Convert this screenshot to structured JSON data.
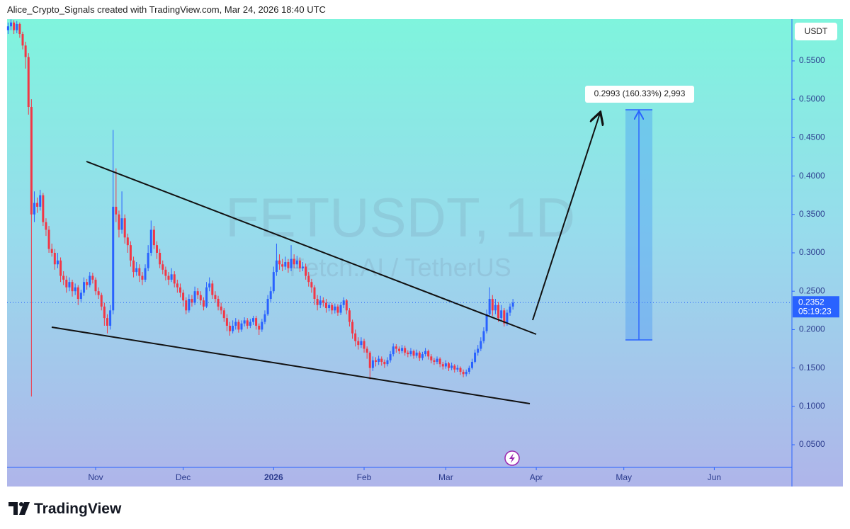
{
  "header": {
    "text": "Alice_Crypto_Signals created with TradingView.com, Mar 24, 2026 18:40 UTC"
  },
  "chart_data": {
    "type": "candlestick",
    "watermark": "FETUSDT, 1D",
    "watermark_subtitle": "Fetch.AI / TetherUS",
    "y_axis_unit": "USDT",
    "up_color": "#2962ff",
    "down_color": "#f23645",
    "xlim": [
      0.66,
      269.6
    ],
    "ylim": [
      0.0205,
      0.6044
    ],
    "xticks": [
      {
        "value": 31,
        "label": "Nov"
      },
      {
        "value": 61,
        "label": "Dec"
      },
      {
        "value": 92,
        "label": "2026"
      },
      {
        "value": 123,
        "label": "Feb"
      },
      {
        "value": 151,
        "label": "Mar"
      },
      {
        "value": 182,
        "label": "Apr"
      },
      {
        "value": 212,
        "label": "May"
      },
      {
        "value": 243,
        "label": "Jun"
      }
    ],
    "yticks": [
      {
        "value": 0.05,
        "label": "0.0500"
      },
      {
        "value": 0.1,
        "label": "0.1000"
      },
      {
        "value": 0.15,
        "label": "0.1500"
      },
      {
        "value": 0.2,
        "label": "0.2000"
      },
      {
        "value": 0.25,
        "label": "0.2500"
      },
      {
        "value": 0.3,
        "label": "0.3000"
      },
      {
        "value": 0.35,
        "label": "0.3500"
      },
      {
        "value": 0.4,
        "label": "0.4000"
      },
      {
        "value": 0.45,
        "label": "0.4500"
      },
      {
        "value": 0.5,
        "label": "0.5000"
      },
      {
        "value": 0.55,
        "label": "0.5500"
      }
    ],
    "last_price": 0.2352,
    "countdown": "05:19:23",
    "measurement_label": "0.2993 (160.33%) 2,993",
    "x": [
      1,
      2,
      3,
      4,
      5,
      6,
      7,
      8,
      9,
      10,
      11,
      12,
      13,
      14,
      15,
      16,
      17,
      18,
      19,
      20,
      21,
      22,
      23,
      24,
      25,
      26,
      27,
      28,
      29,
      30,
      31,
      32,
      33,
      34,
      35,
      36,
      37,
      38,
      39,
      40,
      41,
      42,
      43,
      44,
      45,
      46,
      47,
      48,
      49,
      50,
      51,
      52,
      53,
      54,
      55,
      56,
      57,
      58,
      59,
      60,
      61,
      62,
      63,
      64,
      65,
      66,
      67,
      68,
      69,
      70,
      71,
      72,
      73,
      74,
      75,
      76,
      77,
      78,
      79,
      80,
      81,
      82,
      83,
      84,
      85,
      86,
      87,
      88,
      89,
      90,
      91,
      92,
      93,
      94,
      95,
      96,
      97,
      98,
      99,
      100,
      101,
      102,
      103,
      104,
      105,
      106,
      107,
      108,
      109,
      110,
      111,
      112,
      113,
      114,
      115,
      116,
      117,
      118,
      119,
      120,
      121,
      122,
      123,
      124,
      125,
      126,
      127,
      128,
      129,
      130,
      131,
      132,
      133,
      134,
      135,
      136,
      137,
      138,
      139,
      140,
      141,
      142,
      143,
      144,
      145,
      146,
      147,
      148,
      149,
      150,
      151,
      152,
      153,
      154,
      155,
      156,
      157,
      158,
      159,
      160,
      161,
      162,
      163,
      164,
      165,
      166,
      167,
      168,
      169,
      170,
      171,
      172,
      173,
      174
    ],
    "open": [
      0.59,
      0.595,
      0.6,
      0.59,
      0.598,
      0.585,
      0.57,
      0.555,
      0.49,
      0.35,
      0.365,
      0.36,
      0.375,
      0.34,
      0.33,
      0.305,
      0.3,
      0.285,
      0.29,
      0.27,
      0.265,
      0.255,
      0.262,
      0.25,
      0.255,
      0.24,
      0.248,
      0.262,
      0.258,
      0.27,
      0.265,
      0.25,
      0.245,
      0.23,
      0.215,
      0.205,
      0.225,
      0.36,
      0.35,
      0.33,
      0.345,
      0.32,
      0.31,
      0.29,
      0.275,
      0.28,
      0.27,
      0.265,
      0.28,
      0.3,
      0.33,
      0.31,
      0.3,
      0.285,
      0.278,
      0.27,
      0.265,
      0.272,
      0.26,
      0.255,
      0.248,
      0.238,
      0.225,
      0.24,
      0.235,
      0.25,
      0.245,
      0.238,
      0.23,
      0.255,
      0.26,
      0.245,
      0.24,
      0.23,
      0.225,
      0.215,
      0.205,
      0.198,
      0.205,
      0.21,
      0.2,
      0.208,
      0.212,
      0.205,
      0.21,
      0.215,
      0.205,
      0.2,
      0.21,
      0.22,
      0.24,
      0.25,
      0.275,
      0.29,
      0.285,
      0.282,
      0.288,
      0.28,
      0.292,
      0.285,
      0.29,
      0.28,
      0.282,
      0.27,
      0.262,
      0.255,
      0.24,
      0.232,
      0.238,
      0.235,
      0.228,
      0.232,
      0.225,
      0.23,
      0.222,
      0.232,
      0.238,
      0.225,
      0.21,
      0.195,
      0.185,
      0.18,
      0.185,
      0.175,
      0.17,
      0.15,
      0.16,
      0.158,
      0.162,
      0.158,
      0.155,
      0.16,
      0.168,
      0.178,
      0.175,
      0.172,
      0.176,
      0.17,
      0.168,
      0.172,
      0.166,
      0.17,
      0.163,
      0.168,
      0.172,
      0.165,
      0.16,
      0.158,
      0.162,
      0.155,
      0.152,
      0.156,
      0.15,
      0.153,
      0.148,
      0.15,
      0.145,
      0.142,
      0.145,
      0.15,
      0.158,
      0.17,
      0.175,
      0.185,
      0.198,
      0.22,
      0.24,
      0.225,
      0.232,
      0.215,
      0.225,
      0.208,
      0.222,
      0.23
    ],
    "high": [
      0.6,
      0.604,
      0.603,
      0.602,
      0.6,
      0.588,
      0.575,
      0.56,
      0.5,
      0.38,
      0.372,
      0.382,
      0.378,
      0.345,
      0.335,
      0.312,
      0.305,
      0.3,
      0.294,
      0.276,
      0.27,
      0.268,
      0.265,
      0.26,
      0.258,
      0.252,
      0.268,
      0.266,
      0.275,
      0.274,
      0.268,
      0.255,
      0.248,
      0.235,
      0.22,
      0.232,
      0.46,
      0.41,
      0.355,
      0.38,
      0.35,
      0.325,
      0.315,
      0.295,
      0.288,
      0.285,
      0.275,
      0.285,
      0.31,
      0.342,
      0.335,
      0.315,
      0.305,
      0.29,
      0.282,
      0.275,
      0.28,
      0.276,
      0.265,
      0.26,
      0.252,
      0.242,
      0.246,
      0.245,
      0.256,
      0.254,
      0.25,
      0.242,
      0.262,
      0.268,
      0.264,
      0.25,
      0.244,
      0.235,
      0.228,
      0.22,
      0.21,
      0.212,
      0.215,
      0.213,
      0.212,
      0.216,
      0.215,
      0.214,
      0.218,
      0.218,
      0.208,
      0.214,
      0.225,
      0.245,
      0.256,
      0.282,
      0.312,
      0.298,
      0.292,
      0.295,
      0.292,
      0.31,
      0.298,
      0.296,
      0.294,
      0.288,
      0.286,
      0.275,
      0.266,
      0.258,
      0.245,
      0.244,
      0.242,
      0.24,
      0.236,
      0.235,
      0.234,
      0.233,
      0.236,
      0.242,
      0.24,
      0.228,
      0.213,
      0.2,
      0.19,
      0.19,
      0.188,
      0.178,
      0.172,
      0.165,
      0.164,
      0.166,
      0.165,
      0.161,
      0.164,
      0.172,
      0.182,
      0.181,
      0.178,
      0.18,
      0.179,
      0.173,
      0.176,
      0.174,
      0.174,
      0.172,
      0.171,
      0.176,
      0.174,
      0.168,
      0.163,
      0.165,
      0.164,
      0.158,
      0.16,
      0.158,
      0.157,
      0.155,
      0.154,
      0.152,
      0.148,
      0.148,
      0.153,
      0.162,
      0.174,
      0.18,
      0.19,
      0.203,
      0.226,
      0.255,
      0.245,
      0.24,
      0.236,
      0.232,
      0.228,
      0.226,
      0.234,
      0.24
    ],
    "low": [
      0.585,
      0.59,
      0.585,
      0.586,
      0.58,
      0.565,
      0.54,
      0.48,
      0.113,
      0.34,
      0.352,
      0.355,
      0.335,
      0.322,
      0.3,
      0.295,
      0.278,
      0.28,
      0.262,
      0.258,
      0.248,
      0.25,
      0.243,
      0.245,
      0.232,
      0.236,
      0.244,
      0.252,
      0.255,
      0.26,
      0.245,
      0.24,
      0.225,
      0.205,
      0.195,
      0.2,
      0.22,
      0.34,
      0.32,
      0.325,
      0.312,
      0.3,
      0.282,
      0.268,
      0.27,
      0.262,
      0.258,
      0.262,
      0.276,
      0.296,
      0.305,
      0.292,
      0.28,
      0.272,
      0.264,
      0.258,
      0.262,
      0.255,
      0.248,
      0.242,
      0.23,
      0.22,
      0.222,
      0.23,
      0.232,
      0.24,
      0.232,
      0.225,
      0.228,
      0.25,
      0.24,
      0.235,
      0.225,
      0.22,
      0.21,
      0.198,
      0.192,
      0.195,
      0.2,
      0.196,
      0.197,
      0.204,
      0.201,
      0.202,
      0.206,
      0.2,
      0.193,
      0.197,
      0.207,
      0.218,
      0.236,
      0.247,
      0.27,
      0.278,
      0.276,
      0.278,
      0.274,
      0.276,
      0.28,
      0.28,
      0.275,
      0.276,
      0.265,
      0.256,
      0.248,
      0.232,
      0.225,
      0.228,
      0.23,
      0.222,
      0.224,
      0.22,
      0.221,
      0.218,
      0.219,
      0.228,
      0.22,
      0.204,
      0.188,
      0.178,
      0.174,
      0.176,
      0.17,
      0.162,
      0.135,
      0.146,
      0.152,
      0.154,
      0.153,
      0.15,
      0.152,
      0.157,
      0.165,
      0.17,
      0.168,
      0.169,
      0.166,
      0.164,
      0.165,
      0.162,
      0.163,
      0.159,
      0.16,
      0.165,
      0.161,
      0.156,
      0.154,
      0.155,
      0.151,
      0.148,
      0.149,
      0.146,
      0.147,
      0.144,
      0.145,
      0.141,
      0.138,
      0.139,
      0.142,
      0.148,
      0.156,
      0.166,
      0.172,
      0.182,
      0.195,
      0.218,
      0.218,
      0.22,
      0.21,
      0.212,
      0.204,
      0.205,
      0.218,
      0.226
    ],
    "close": [
      0.595,
      0.6,
      0.59,
      0.598,
      0.585,
      0.57,
      0.555,
      0.49,
      0.35,
      0.365,
      0.36,
      0.375,
      0.34,
      0.33,
      0.305,
      0.3,
      0.285,
      0.29,
      0.27,
      0.265,
      0.255,
      0.262,
      0.25,
      0.255,
      0.24,
      0.248,
      0.262,
      0.258,
      0.27,
      0.265,
      0.25,
      0.245,
      0.23,
      0.215,
      0.205,
      0.225,
      0.36,
      0.35,
      0.33,
      0.345,
      0.32,
      0.31,
      0.29,
      0.275,
      0.28,
      0.27,
      0.265,
      0.28,
      0.3,
      0.33,
      0.31,
      0.3,
      0.285,
      0.278,
      0.27,
      0.265,
      0.272,
      0.26,
      0.255,
      0.248,
      0.238,
      0.225,
      0.24,
      0.235,
      0.25,
      0.245,
      0.238,
      0.23,
      0.255,
      0.26,
      0.245,
      0.24,
      0.23,
      0.225,
      0.215,
      0.205,
      0.198,
      0.205,
      0.21,
      0.2,
      0.208,
      0.212,
      0.205,
      0.21,
      0.215,
      0.205,
      0.2,
      0.21,
      0.22,
      0.24,
      0.25,
      0.275,
      0.29,
      0.285,
      0.282,
      0.288,
      0.28,
      0.292,
      0.285,
      0.29,
      0.28,
      0.282,
      0.27,
      0.262,
      0.255,
      0.24,
      0.232,
      0.238,
      0.235,
      0.228,
      0.232,
      0.225,
      0.23,
      0.222,
      0.232,
      0.238,
      0.225,
      0.21,
      0.195,
      0.185,
      0.18,
      0.185,
      0.175,
      0.17,
      0.15,
      0.16,
      0.158,
      0.162,
      0.158,
      0.155,
      0.16,
      0.168,
      0.178,
      0.175,
      0.172,
      0.176,
      0.17,
      0.168,
      0.172,
      0.166,
      0.17,
      0.163,
      0.168,
      0.172,
      0.165,
      0.16,
      0.158,
      0.162,
      0.155,
      0.152,
      0.156,
      0.15,
      0.153,
      0.148,
      0.15,
      0.145,
      0.142,
      0.145,
      0.15,
      0.158,
      0.17,
      0.175,
      0.185,
      0.198,
      0.22,
      0.24,
      0.225,
      0.232,
      0.215,
      0.225,
      0.208,
      0.222,
      0.23,
      0.2352
    ]
  },
  "footer": {
    "brand": "TradingView"
  }
}
